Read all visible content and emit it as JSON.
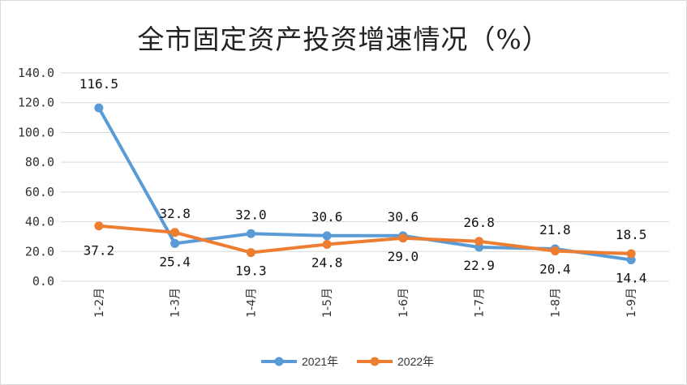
{
  "chart_data": {
    "type": "line",
    "title": "全市固定资产投资增速情况（%）",
    "categories": [
      "1-2月",
      "1-3月",
      "1-4月",
      "1-5月",
      "1-6月",
      "1-7月",
      "1-8月",
      "1-9月"
    ],
    "y_ticks": [
      "0.0",
      "20.0",
      "40.0",
      "60.0",
      "80.0",
      "100.0",
      "120.0",
      "140.0"
    ],
    "ylim": [
      0,
      140
    ],
    "grid": true,
    "legend_position": "bottom",
    "series": [
      {
        "name": "2021年",
        "color": "#5b9bd5",
        "values": [
          116.5,
          25.4,
          32.0,
          30.6,
          30.6,
          22.9,
          21.8,
          14.4
        ],
        "labels": [
          "116.5",
          "25.4",
          "32.0",
          "30.6",
          "30.6",
          "22.9",
          "21.8",
          "14.4"
        ]
      },
      {
        "name": "2022年",
        "color": "#ed7d31",
        "values": [
          37.2,
          32.8,
          19.3,
          24.8,
          29.0,
          26.8,
          20.4,
          18.5
        ],
        "labels": [
          "37.2",
          "32.8",
          "19.3",
          "24.8",
          "29.0",
          "26.8",
          "20.4",
          "18.5"
        ]
      }
    ]
  }
}
